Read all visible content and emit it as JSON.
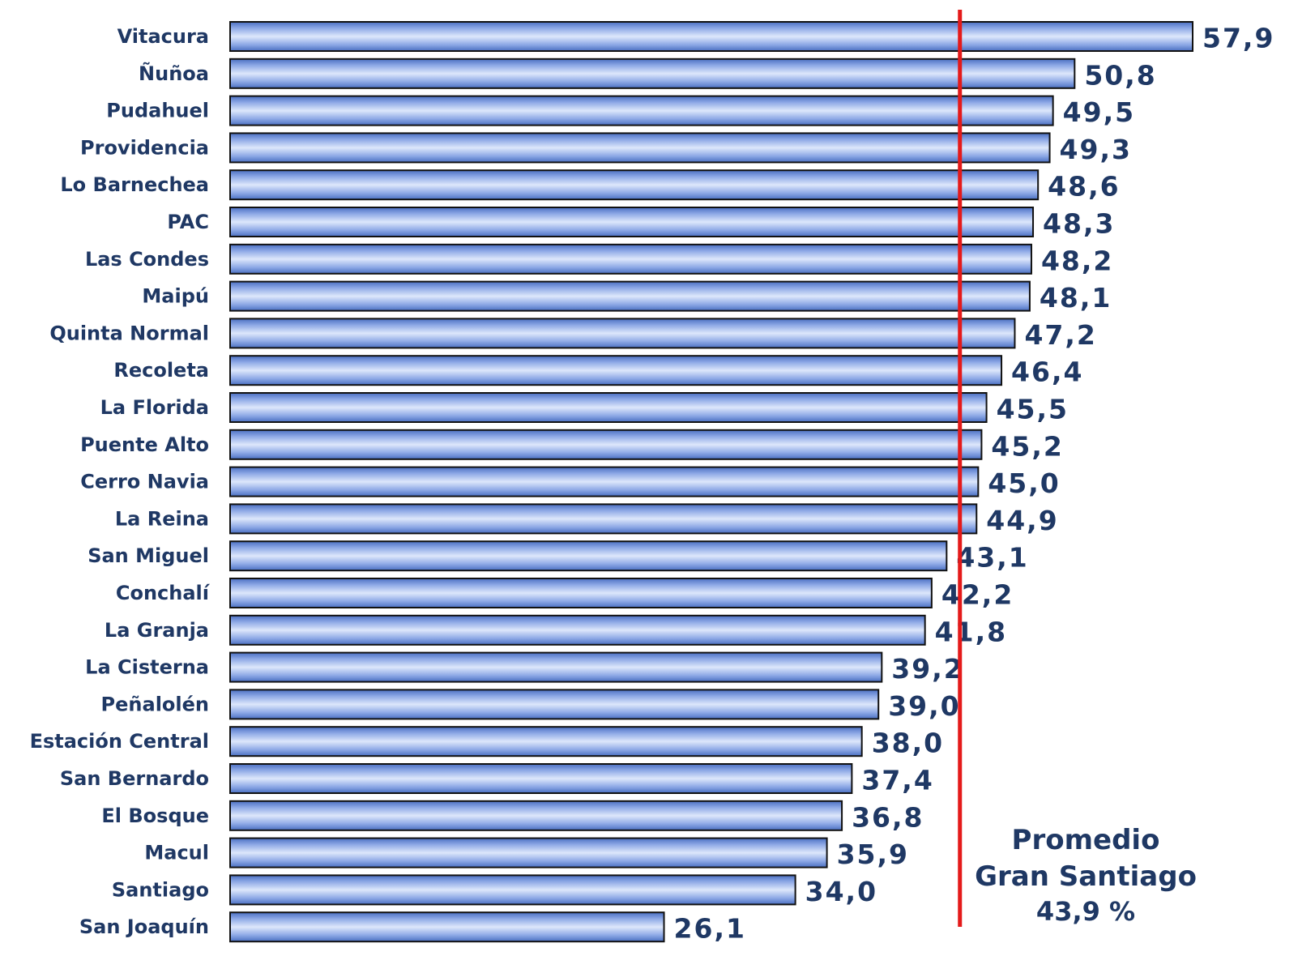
{
  "chart_data": {
    "type": "bar",
    "orientation": "horizontal",
    "categories": [
      "Vitacura",
      "Ñuñoa",
      "Pudahuel",
      "Providencia",
      "Lo Barnechea",
      "PAC",
      "Las Condes",
      "Maipú",
      "Quinta Normal",
      "Recoleta",
      "La Florida",
      "Puente Alto",
      "Cerro Navia",
      "La Reina",
      "San Miguel",
      "Conchalí",
      "La Granja",
      "La Cisterna",
      "Peñalolén",
      "Estación Central",
      "San Bernardo",
      "El Bosque",
      "Macul",
      "Santiago",
      "San Joaquín"
    ],
    "values": [
      57.9,
      50.8,
      49.5,
      49.3,
      48.6,
      48.3,
      48.2,
      48.1,
      47.2,
      46.4,
      45.5,
      45.2,
      45.0,
      44.9,
      43.1,
      42.2,
      41.8,
      39.2,
      39.0,
      38.0,
      37.4,
      36.8,
      35.9,
      34.0,
      26.1
    ],
    "value_labels": [
      "57,9",
      "50,8",
      "49,5",
      "49,3",
      "48,6",
      "48,3",
      "48,2",
      "48,1",
      "47,2",
      "46,4",
      "45,5",
      "45,2",
      "45,0",
      "44,9",
      "43,1",
      "42,2",
      "41,8",
      "39,2",
      "39,0",
      "38,0",
      "37,4",
      "36,8",
      "35,9",
      "34,0",
      "26,1"
    ],
    "xlim": [
      0,
      57.9
    ],
    "reference_line": {
      "value": 43.9,
      "label_lines": [
        "Promedio",
        "Gran Santiago",
        "43,9 %"
      ],
      "color": "#E41A1A"
    },
    "title": "",
    "xlabel": "",
    "ylabel": "",
    "grid": false,
    "legend": "none"
  },
  "colors": {
    "bar_dark": "#4A6FC2",
    "bar_mid": "#8EA9E6",
    "bar_light": "#DDE7FB",
    "bar_edge": "#111111",
    "text": "#1F3864",
    "average_line": "#E41A1A"
  }
}
